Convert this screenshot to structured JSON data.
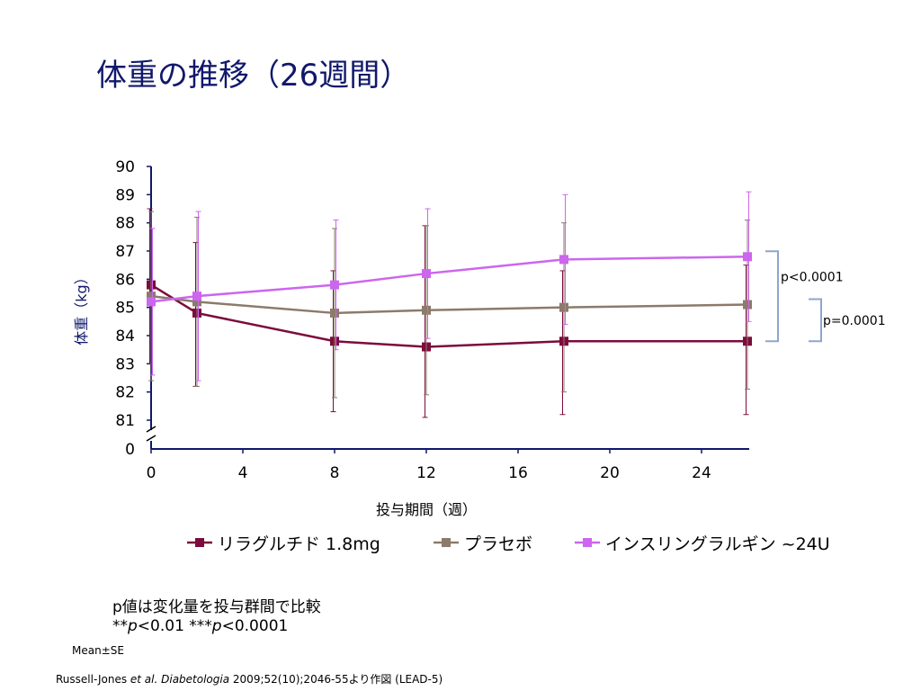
{
  "slide": {
    "title": "体重の推移（26週間）",
    "note_line1": "p値は変化量を投与群間で比較",
    "note_line2_prefix": "**",
    "note_line2_p1": "p",
    "note_line2_mid": "<0.01 ***",
    "note_line2_p2": "p",
    "note_line2_suffix": "<0.0001",
    "mean_se": "Mean±SE",
    "citation_author": "Russell-Jones ",
    "citation_etal": "et al.",
    "citation_journal": " Diabetologia",
    "citation_rest": " 2009;52(10);2046-55より作図 (LEAD-5)"
  },
  "chart_data": {
    "type": "line",
    "xlabel": "投与期間（週）",
    "ylabel": "体重（kg）",
    "x_ticks": [
      0,
      4,
      8,
      12,
      16,
      20,
      24
    ],
    "x_range": [
      0,
      26
    ],
    "y_ticks": [
      81,
      82,
      83,
      84,
      85,
      86,
      87,
      88,
      89,
      90
    ],
    "y_range": [
      81,
      90
    ],
    "y_axis_break": true,
    "y_axis_zero_label": "0",
    "legend_position": "bottom",
    "series": [
      {
        "name": "リラグルチド 1.8mg",
        "color": "#7b0c3b",
        "x": [
          0,
          2,
          8,
          12,
          18,
          26
        ],
        "y": [
          85.8,
          84.8,
          83.8,
          83.6,
          83.8,
          83.8
        ],
        "err_high": [
          88.5,
          87.3,
          86.3,
          87.9,
          86.3,
          86.5
        ],
        "err_low": [
          83.0,
          82.2,
          81.3,
          81.1,
          81.2,
          81.2
        ]
      },
      {
        "name": "プラセボ",
        "color": "#8c7a6b",
        "x": [
          0,
          2,
          8,
          12,
          18,
          26
        ],
        "y": [
          85.4,
          85.2,
          84.8,
          84.9,
          85.0,
          85.1
        ],
        "err_high": [
          88.4,
          88.2,
          87.8,
          87.9,
          88.0,
          88.1
        ],
        "err_low": [
          82.4,
          82.2,
          81.8,
          81.9,
          82.0,
          82.1
        ]
      },
      {
        "name": "インスリングラルギン ~24U",
        "color": "#cc66ee",
        "x": [
          0,
          2,
          8,
          12,
          18,
          26
        ],
        "y": [
          85.2,
          85.4,
          85.8,
          86.2,
          86.7,
          86.8
        ],
        "err_high": [
          87.8,
          88.4,
          88.1,
          88.5,
          89.0,
          89.1
        ],
        "err_low": [
          82.6,
          82.4,
          83.5,
          83.9,
          84.4,
          84.5
        ]
      }
    ],
    "annotations": [
      {
        "text": "p<0.0001",
        "y_from": 86.8,
        "y_to": 83.8
      },
      {
        "text": "p=0.0001",
        "y_from": 85.1,
        "y_to": 83.8
      }
    ]
  }
}
